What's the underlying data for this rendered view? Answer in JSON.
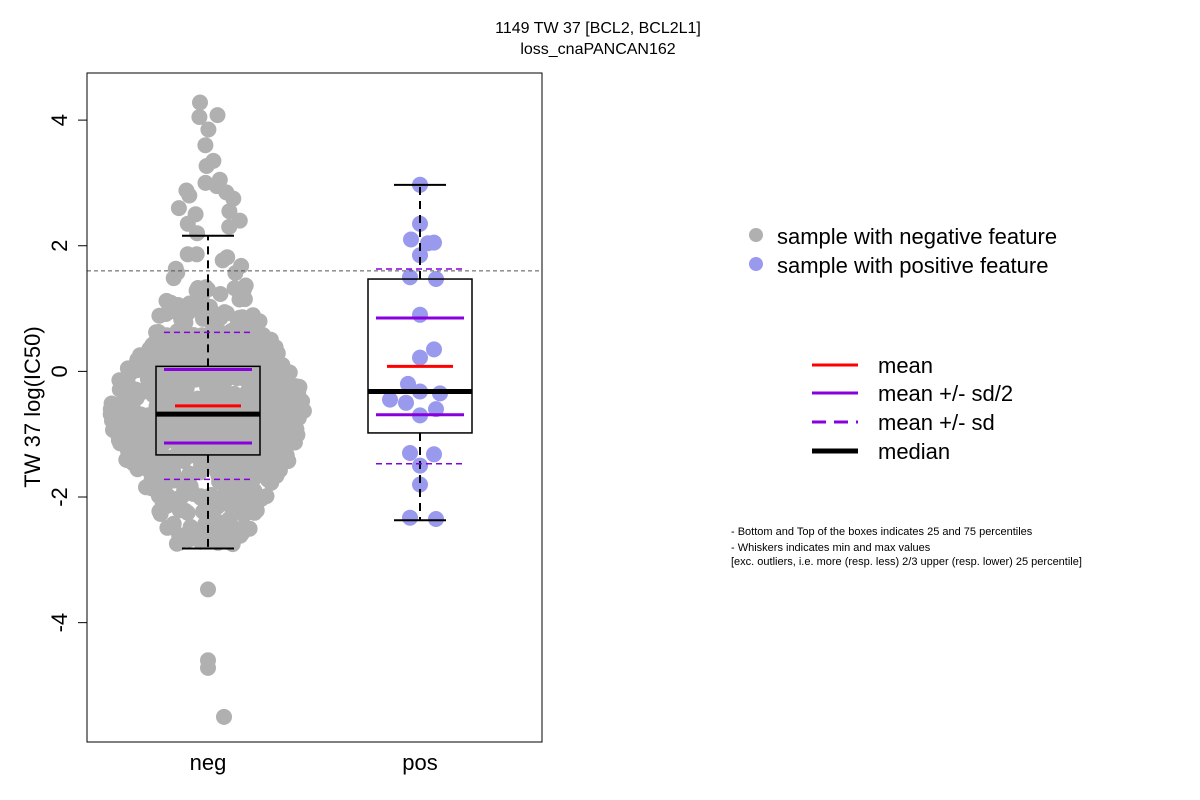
{
  "chart_data": {
    "type": "boxplot",
    "title": "1149 TW 37 [BCL2, BCL2L1]",
    "subtitle": "loss_cnaPANCAN162",
    "ylabel": "TW 37 log(IC50)",
    "ylim": [
      -5.9,
      4.75
    ],
    "yticks": [
      4,
      2,
      0,
      -2,
      -4
    ],
    "threshold_y": 1.6,
    "categories": [
      "neg",
      "pos"
    ],
    "groups": [
      {
        "category": "neg",
        "color": "#b0b0b0",
        "q1": -1.33,
        "median": -0.68,
        "q3": 0.08,
        "whisker_low": -2.82,
        "whisker_high": 2.16,
        "mean": -0.55,
        "mean_minus_half_sd": -1.14,
        "mean_plus_half_sd": 0.03,
        "mean_minus_sd": -1.72,
        "mean_plus_sd": 0.62,
        "n_points": 900,
        "outliers_low": [
          -3.47,
          -4.6,
          -4.72,
          -5.5
        ],
        "outliers_high": [
          4.28,
          4.08,
          4.05,
          3.85,
          3.6,
          3.35,
          3.27,
          3.05,
          3.0,
          2.95,
          2.88,
          2.85,
          2.8,
          2.75,
          2.6,
          2.55,
          2.5,
          2.4,
          2.35,
          2.3,
          2.2
        ]
      },
      {
        "category": "pos",
        "color": "#9999ee",
        "q1": -0.98,
        "median": -0.32,
        "q3": 1.47,
        "whisker_low": -2.37,
        "whisker_high": 2.97,
        "mean": 0.08,
        "mean_minus_half_sd": -0.69,
        "mean_plus_half_sd": 0.85,
        "mean_minus_sd": -1.47,
        "mean_plus_sd": 1.63,
        "points": [
          2.97,
          2.35,
          2.1,
          2.05,
          2.04,
          1.85,
          1.5,
          1.47,
          0.9,
          0.35,
          0.22,
          -0.2,
          -0.32,
          -0.35,
          -0.45,
          -0.5,
          -0.6,
          -0.7,
          -1.3,
          -1.32,
          -1.5,
          -1.8,
          -2.33,
          -2.35
        ]
      }
    ],
    "legend": {
      "placement": "right",
      "samples": [
        {
          "label": "sample with negative feature",
          "color": "#b0b0b0"
        },
        {
          "label": "sample with positive feature",
          "color": "#9999ee"
        }
      ],
      "lines": [
        {
          "label": "mean",
          "color": "#ff0000",
          "style": "solid"
        },
        {
          "label": "mean +/- sd/2",
          "color": "#8800dd",
          "style": "solid"
        },
        {
          "label": "mean +/- sd",
          "color": "#8800dd",
          "style": "dashed"
        },
        {
          "label": "median",
          "color": "#000000",
          "style": "solid-thick"
        }
      ]
    },
    "notes": [
      "- Bottom and Top of the boxes indicates 25 and 75 percentiles",
      "- Whiskers indicates min and max values",
      "[exc. outliers, i.e. more (resp. less) 2/3 upper (resp. lower) 25 percentile]"
    ]
  }
}
